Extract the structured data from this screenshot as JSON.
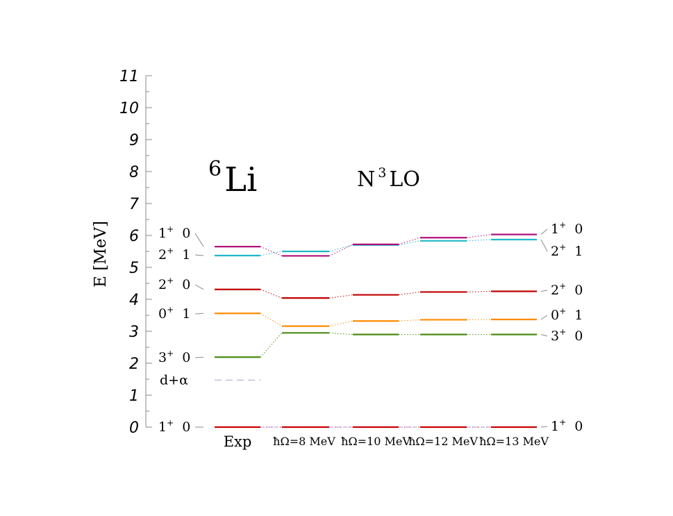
{
  "chart_data": {
    "type": "level_scheme",
    "title_nucleus": {
      "mass": "6",
      "symbol": "Li"
    },
    "title_method": {
      "base": "N",
      "sup": "3",
      "rest": "LO"
    },
    "ylabel": "E [MeV]",
    "ylim": [
      0,
      11
    ],
    "yticks": [
      "0",
      "1",
      "2",
      "3",
      "4",
      "5",
      "6",
      "7",
      "8",
      "9",
      "10",
      "11"
    ],
    "columns": [
      {
        "label": "Exp"
      },
      {
        "label": "ħΩ=8 MeV"
      },
      {
        "label": "ħΩ=10 MeV"
      },
      {
        "label": "ħΩ=12 MeV"
      },
      {
        "label": "ħΩ=13 MeV"
      }
    ],
    "threshold": {
      "label": "d+α",
      "energy": 1.47
    },
    "states": [
      {
        "J": "1",
        "parity": "+",
        "T": "0",
        "color": "#cc0000",
        "energies": [
          0.0,
          0.0,
          0.0,
          0.0,
          0.0
        ]
      },
      {
        "J": "3",
        "parity": "+",
        "T": "0",
        "color": "#4a8a10",
        "energies": [
          2.19,
          2.95,
          2.9,
          2.9,
          2.9
        ]
      },
      {
        "J": "0",
        "parity": "+",
        "T": "1",
        "color": "#ff8c00",
        "energies": [
          3.56,
          3.16,
          3.32,
          3.36,
          3.37
        ]
      },
      {
        "J": "2",
        "parity": "+",
        "T": "0",
        "color": "#c00000",
        "energies": [
          4.31,
          4.04,
          4.14,
          4.23,
          4.25
        ]
      },
      {
        "J": "2",
        "parity": "+",
        "T": "1",
        "color": "#1fb8c8",
        "energies": [
          5.37,
          5.5,
          5.7,
          5.83,
          5.87
        ]
      },
      {
        "J": "1",
        "parity": "+",
        "T": "0",
        "color": "#b0107a",
        "energies": [
          5.65,
          5.36,
          5.72,
          5.93,
          6.03
        ]
      }
    ],
    "left_labels": [
      {
        "J": "1",
        "parity": "+",
        "T": "0",
        "energy": 0.0
      },
      {
        "J": "3",
        "parity": "+",
        "T": "0",
        "energy": 2.19
      },
      {
        "J": "0",
        "parity": "+",
        "T": "1",
        "energy": 3.56
      },
      {
        "J": "2",
        "parity": "+",
        "T": "0",
        "energy": 4.31
      },
      {
        "J": "2",
        "parity": "+",
        "T": "1",
        "energy": 5.37
      },
      {
        "J": "1",
        "parity": "+",
        "T": "0",
        "energy": 5.65
      }
    ],
    "right_labels": [
      {
        "J": "1",
        "parity": "+",
        "T": "0",
        "energy": 0.0
      },
      {
        "J": "3",
        "parity": "+",
        "T": "0",
        "energy": 2.9
      },
      {
        "J": "0",
        "parity": "+",
        "T": "1",
        "energy": 3.37
      },
      {
        "J": "2",
        "parity": "+",
        "T": "0",
        "energy": 4.25
      },
      {
        "J": "2",
        "parity": "+",
        "T": "1",
        "energy": 5.87
      },
      {
        "J": "1",
        "parity": "+",
        "T": "0",
        "energy": 6.03
      }
    ],
    "grid": false,
    "legend": "none"
  }
}
